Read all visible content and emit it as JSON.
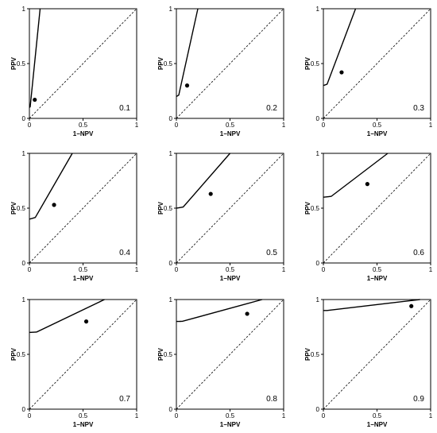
{
  "chart_data": [
    {
      "type": "line",
      "label": "0.1",
      "xlabel": "1−NPV",
      "ylabel": "PPV",
      "xlim": [
        0,
        1
      ],
      "ylim": [
        0,
        1
      ],
      "xticks": [
        "0",
        "0.5",
        "1"
      ],
      "yticks": [
        "0",
        "0.5",
        "1"
      ],
      "start_y": 0.1,
      "end_x": 0.1,
      "point": [
        0.05,
        0.17
      ]
    },
    {
      "type": "line",
      "label": "0.2",
      "xlabel": "1−NPV",
      "ylabel": "PPV",
      "xlim": [
        0,
        1
      ],
      "ylim": [
        0,
        1
      ],
      "xticks": [
        "0",
        "0.5",
        "1"
      ],
      "yticks": [
        "0",
        "0.5",
        "1"
      ],
      "start_y": 0.2,
      "end_x": 0.2,
      "point": [
        0.1,
        0.3
      ]
    },
    {
      "type": "line",
      "label": "0.3",
      "xlabel": "1−NPV",
      "ylabel": "PPV",
      "xlim": [
        0,
        1
      ],
      "ylim": [
        0,
        1
      ],
      "xticks": [
        "0",
        "0.5",
        "1"
      ],
      "yticks": [
        "0",
        "0.5",
        "1"
      ],
      "start_y": 0.3,
      "end_x": 0.3,
      "point": [
        0.17,
        0.42
      ]
    },
    {
      "type": "line",
      "label": "0.4",
      "xlabel": "1−NPV",
      "ylabel": "PPV",
      "xlim": [
        0,
        1
      ],
      "ylim": [
        0,
        1
      ],
      "xticks": [
        "0",
        "0.5",
        "1"
      ],
      "yticks": [
        "0",
        "0.5",
        "1"
      ],
      "start_y": 0.4,
      "end_x": 0.4,
      "point": [
        0.23,
        0.53
      ]
    },
    {
      "type": "line",
      "label": "0.5",
      "xlabel": "1−NPV",
      "ylabel": "PPV",
      "xlim": [
        0,
        1
      ],
      "ylim": [
        0,
        1
      ],
      "xticks": [
        "0",
        "0.5",
        "1"
      ],
      "yticks": [
        "0",
        "0.5",
        "1"
      ],
      "start_y": 0.5,
      "end_x": 0.5,
      "point": [
        0.32,
        0.63
      ]
    },
    {
      "type": "line",
      "label": "0.6",
      "xlabel": "1−NPV",
      "ylabel": "PPV",
      "xlim": [
        0,
        1
      ],
      "ylim": [
        0,
        1
      ],
      "xticks": [
        "0",
        "0.5",
        "1"
      ],
      "yticks": [
        "0",
        "0.5",
        "1"
      ],
      "start_y": 0.6,
      "end_x": 0.6,
      "point": [
        0.41,
        0.72
      ]
    },
    {
      "type": "line",
      "label": "0.7",
      "xlabel": "1−NPV",
      "ylabel": "PPV",
      "xlim": [
        0,
        1
      ],
      "ylim": [
        0,
        1
      ],
      "xticks": [
        "0",
        "0.5",
        "1"
      ],
      "yticks": [
        "0",
        "0.5",
        "1"
      ],
      "start_y": 0.7,
      "end_x": 0.7,
      "point": [
        0.53,
        0.8
      ]
    },
    {
      "type": "line",
      "label": "0.8",
      "xlabel": "1−NPV",
      "ylabel": "PPV",
      "xlim": [
        0,
        1
      ],
      "ylim": [
        0,
        1
      ],
      "xticks": [
        "0",
        "0.5",
        "1"
      ],
      "yticks": [
        "0",
        "0.5",
        "1"
      ],
      "start_y": 0.8,
      "end_x": 0.8,
      "point": [
        0.66,
        0.87
      ]
    },
    {
      "type": "line",
      "label": "0.9",
      "xlabel": "1−NPV",
      "ylabel": "PPV",
      "xlim": [
        0,
        1
      ],
      "ylim": [
        0,
        1
      ],
      "xticks": [
        "0",
        "0.5",
        "1"
      ],
      "yticks": [
        "0",
        "0.5",
        "1"
      ],
      "start_y": 0.9,
      "end_x": 0.9,
      "point": [
        0.82,
        0.94
      ]
    }
  ]
}
